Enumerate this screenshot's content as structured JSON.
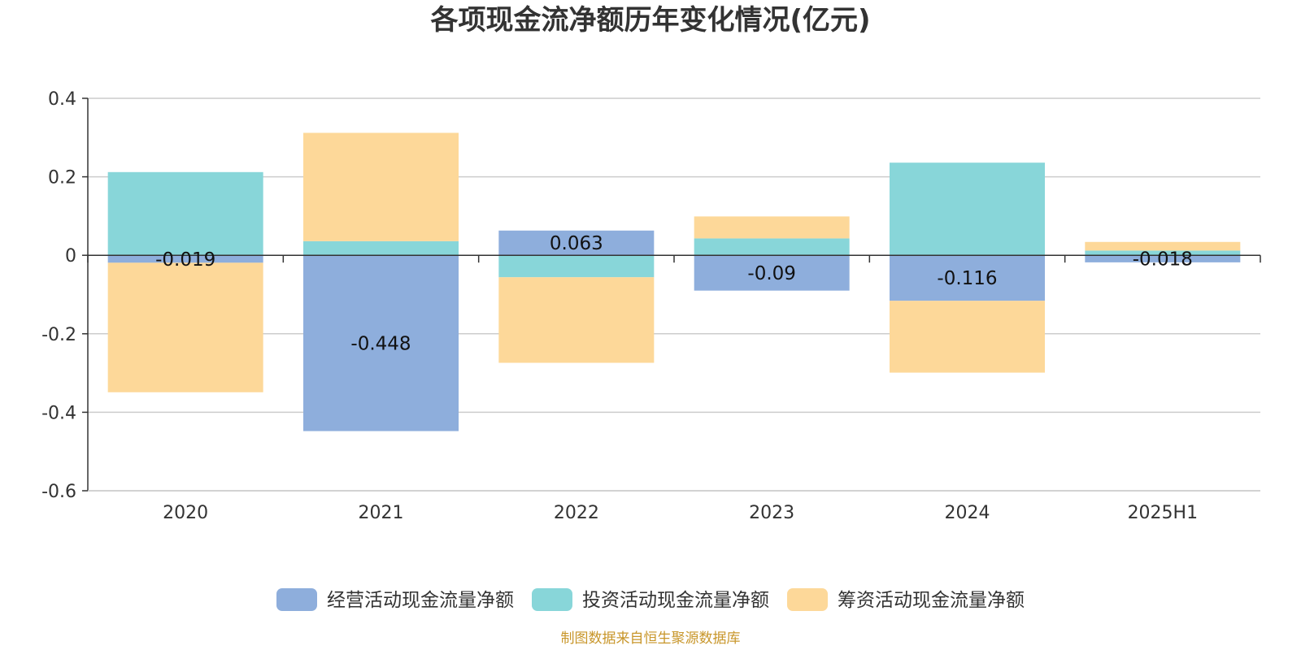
{
  "chart_data": {
    "type": "bar",
    "stacked": true,
    "title": "各项现金流净额历年变化情况(亿元)",
    "categories": [
      "2020",
      "2021",
      "2022",
      "2023",
      "2024",
      "2025H1"
    ],
    "ylim": [
      -0.6,
      0.4
    ],
    "yticks": [
      0.4,
      0.2,
      0,
      -0.2,
      -0.4,
      -0.6
    ],
    "ytick_labels": [
      "0.4",
      "0.2",
      "0",
      "-0.2",
      "-0.4",
      "-0.6"
    ],
    "grid": true,
    "legend_position": "bottom",
    "series": [
      {
        "name": "经营活动现金流量净额",
        "color": "#8eaedc",
        "values": [
          -0.019,
          -0.448,
          0.063,
          -0.09,
          -0.116,
          -0.018
        ],
        "labels": [
          "-0.019",
          "-0.448",
          "0.063",
          "-0.09",
          "-0.116",
          "-0.018"
        ]
      },
      {
        "name": "投资活动现金流量净额",
        "color": "#88d6d9",
        "values": [
          0.212,
          0.036,
          -0.056,
          0.043,
          0.236,
          0.012
        ]
      },
      {
        "name": "筹资活动现金流量净额",
        "color": "#fdd899",
        "values": [
          -0.33,
          0.276,
          -0.218,
          0.056,
          -0.183,
          0.022
        ]
      }
    ],
    "source": "制图数据来自恒生聚源数据库"
  }
}
